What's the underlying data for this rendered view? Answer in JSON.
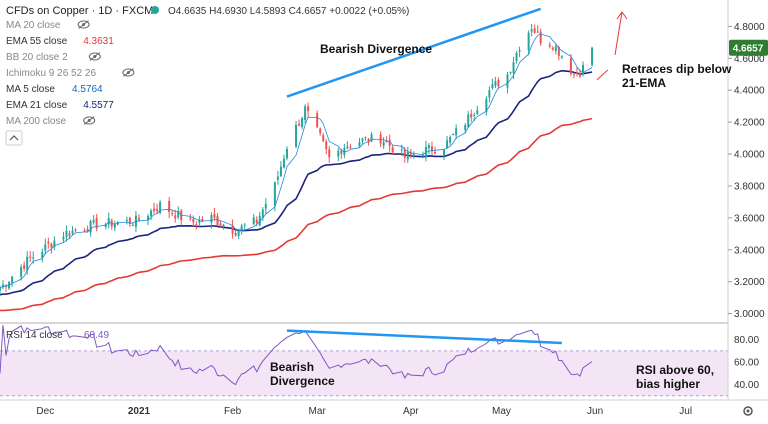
{
  "header": {
    "symbol": "CFDs on Copper · 1D · FXCM",
    "ohlc": "O4.6635 H4.6930 L4.5893 C4.6657 +0.0022 (+0.05%)",
    "status_color": "#26a69a"
  },
  "legend": [
    {
      "label": "MA 20 close",
      "value": "",
      "color": "#999999",
      "eye": true
    },
    {
      "label": "EMA 55 close",
      "value": "4.3631",
      "color": "#e53935",
      "eye": false
    },
    {
      "label": "BB 20 close 2",
      "value": "",
      "color": "#999999",
      "eye": true
    },
    {
      "label": "Ichimoku 9 26 52 26",
      "value": "",
      "color": "#999999",
      "eye": true
    },
    {
      "label": "MA 5 close",
      "value": "4.5764",
      "color": "#1565c0",
      "eye": false
    },
    {
      "label": "EMA 21 close",
      "value": "4.5577",
      "color": "#1a237e",
      "eye": false
    },
    {
      "label": "MA 200 close",
      "value": "",
      "color": "#999999",
      "eye": true
    }
  ],
  "rsi_legend": {
    "label": "RSI 14 close",
    "value": "60.49",
    "color": "#7e57c2"
  },
  "price_tag": {
    "value": "4.6657",
    "color": "#2e7d32"
  },
  "annotations": {
    "bearish_divergence": "Bearish Divergence",
    "retraces_line1": "Retraces dip below",
    "retraces_line2": "21-EMA",
    "rsi_bearish_line1": "Bearish",
    "rsi_bearish_line2": "Divergence",
    "rsi_above_line1": "RSI above 60,",
    "rsi_above_line2": "bias higher"
  },
  "colors": {
    "bull": "#26a69a",
    "bear": "#ef5350",
    "ema21": "#1a237e",
    "ema55": "#e53935",
    "ma5": "#1e88e5",
    "trend": "#2196f3",
    "arrow": "#e53935",
    "rsi_line": "#7e57c2",
    "rsi_band": "#f3e5f5"
  },
  "chart_data": [
    {
      "type": "candlestick",
      "title": "CFDs on Copper · 1D · FXCM",
      "x_ticks": [
        "Dec",
        "2021",
        "Feb",
        "Mar",
        "Apr",
        "May",
        "Jun",
        "Jul"
      ],
      "y_ticks": [
        "3.0000",
        "3.2000",
        "3.4000",
        "3.6000",
        "3.8000",
        "4.0000",
        "4.2000",
        "4.4000",
        "4.6000",
        "4.8000"
      ],
      "ylim": [
        2.96,
        4.94
      ],
      "x_range": [
        "2020-11-16",
        "2021-07-15"
      ],
      "close_anchors": [
        [
          "2020-11-16",
          3.16
        ],
        [
          "2020-11-25",
          3.33
        ],
        [
          "2020-12-07",
          3.5
        ],
        [
          "2020-12-18",
          3.56
        ],
        [
          "2020-12-31",
          3.58
        ],
        [
          "2021-01-08",
          3.68
        ],
        [
          "2021-01-18",
          3.57
        ],
        [
          "2021-01-25",
          3.6
        ],
        [
          "2021-02-02",
          3.52
        ],
        [
          "2021-02-09",
          3.58
        ],
        [
          "2021-02-15",
          3.8
        ],
        [
          "2021-02-19",
          4.05
        ],
        [
          "2021-02-25",
          4.28
        ],
        [
          "2021-03-02",
          4.1
        ],
        [
          "2021-03-05",
          3.97
        ],
        [
          "2021-03-10",
          4.05
        ],
        [
          "2021-03-15",
          4.08
        ],
        [
          "2021-03-22",
          4.1
        ],
        [
          "2021-03-30",
          3.98
        ],
        [
          "2021-04-05",
          4.02
        ],
        [
          "2021-04-12",
          4.05
        ],
        [
          "2021-04-19",
          4.2
        ],
        [
          "2021-04-26",
          4.38
        ],
        [
          "2021-05-03",
          4.5
        ],
        [
          "2021-05-07",
          4.68
        ],
        [
          "2021-05-11",
          4.8
        ],
        [
          "2021-05-14",
          4.72
        ],
        [
          "2021-05-18",
          4.69
        ],
        [
          "2021-05-21",
          4.62
        ],
        [
          "2021-05-25",
          4.5
        ],
        [
          "2021-05-27",
          4.52
        ],
        [
          "2021-05-31",
          4.6
        ]
      ],
      "last_close": 4.6657,
      "series": [
        {
          "name": "EMA 21 close",
          "last": 4.5577
        },
        {
          "name": "EMA 55 close",
          "last": 4.3631
        },
        {
          "name": "MA 5 close",
          "last": 4.5764
        }
      ],
      "trendline": {
        "from": [
          "2021-02-19",
          4.36
        ],
        "to": [
          "2021-05-14",
          4.91
        ]
      },
      "grid": false
    },
    {
      "type": "line",
      "title": "RSI 14 close",
      "y_ticks": [
        "40.00",
        "60.00",
        "80.00"
      ],
      "ylim": [
        28,
        93
      ],
      "band": [
        30,
        70
      ],
      "last": 60.49,
      "trendline": {
        "from": [
          "2021-02-19",
          88
        ],
        "to": [
          "2021-05-21",
          77
        ]
      }
    }
  ]
}
